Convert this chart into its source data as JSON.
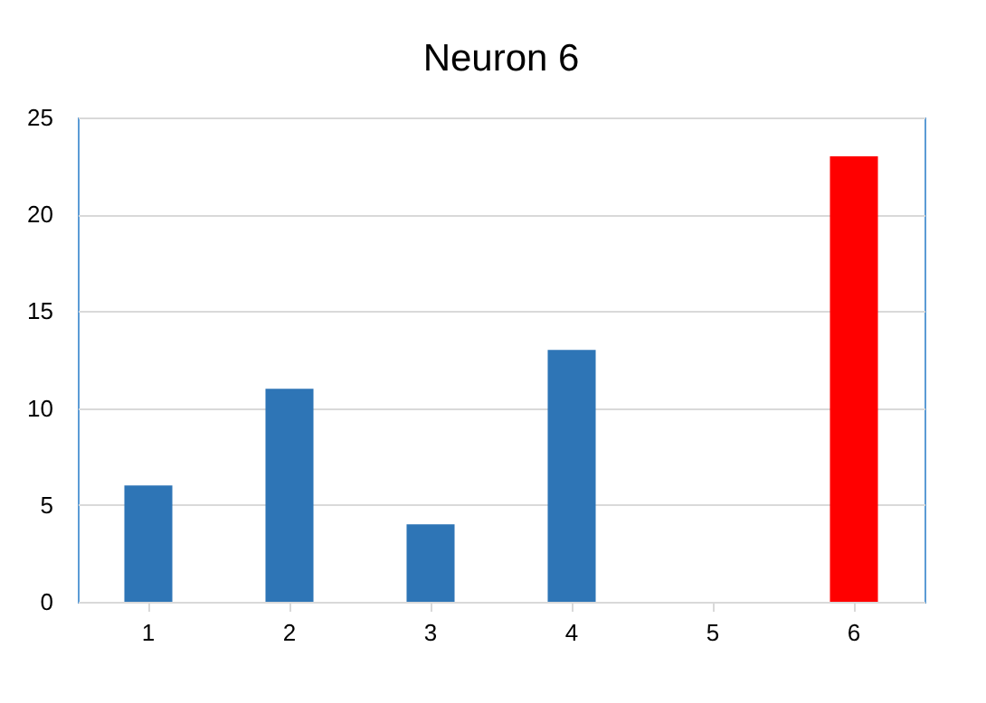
{
  "chart_data": {
    "type": "bar",
    "title": "Neuron 6",
    "categories": [
      "1",
      "2",
      "3",
      "4",
      "5",
      "6"
    ],
    "values": [
      6,
      11,
      4,
      13,
      0,
      23
    ],
    "colors": [
      "#2e75b6",
      "#2e75b6",
      "#2e75b6",
      "#2e75b6",
      "#2e75b6",
      "#ff0000"
    ],
    "ylim": [
      0,
      25
    ],
    "yticks": [
      0,
      5,
      10,
      15,
      20,
      25
    ],
    "grid": "y",
    "legend": false
  }
}
